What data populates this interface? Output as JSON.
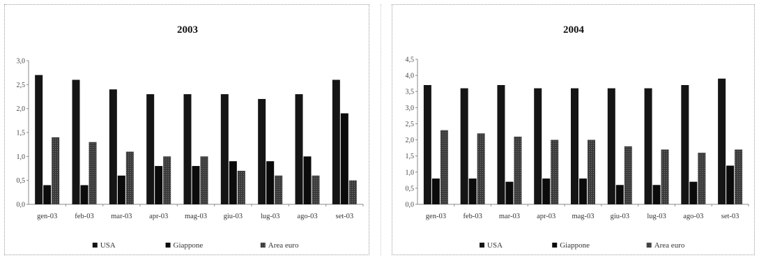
{
  "colors": {
    "USA": "#151515",
    "Giappone": "#0b0b0b",
    "Area euro": "#3c3c3c",
    "axis": "#8a8a8a",
    "grid": "#d0d0d0"
  },
  "chart_data": [
    {
      "type": "bar",
      "title": "2003",
      "categories": [
        "gen-03",
        "feb-03",
        "mar-03",
        "apr-03",
        "mag-03",
        "giu-03",
        "lug-03",
        "ago-03",
        "set-03"
      ],
      "ylim": [
        0,
        3.0
      ],
      "yticks": [
        "0,0",
        "0,5",
        "1,0",
        "1,5",
        "2,0",
        "2,5",
        "3,0"
      ],
      "series": [
        {
          "name": "USA",
          "values": [
            2.7,
            2.6,
            2.4,
            2.3,
            2.3,
            2.3,
            2.2,
            2.3,
            2.6
          ]
        },
        {
          "name": "Giappone",
          "values": [
            0.4,
            0.4,
            0.6,
            0.8,
            0.8,
            0.9,
            0.9,
            1.0,
            1.9
          ]
        },
        {
          "name": "Area euro",
          "values": [
            1.4,
            1.3,
            1.1,
            1.0,
            1.0,
            0.7,
            0.6,
            0.6,
            0.5
          ]
        }
      ],
      "legend": "bottom",
      "grid": false
    },
    {
      "type": "bar",
      "title": "2004",
      "categories": [
        "gen-03",
        "feb-03",
        "mar-03",
        "apr-03",
        "mag-03",
        "giu-03",
        "lug-03",
        "ago-03",
        "set-03"
      ],
      "ylim": [
        0,
        4.5
      ],
      "yticks": [
        "0,0",
        "0,5",
        "1,0",
        "1,5",
        "2,0",
        "2,5",
        "3,0",
        "3,5",
        "4,0",
        "4,5"
      ],
      "series": [
        {
          "name": "USA",
          "values": [
            3.7,
            3.6,
            3.7,
            3.6,
            3.6,
            3.6,
            3.6,
            3.7,
            3.9
          ]
        },
        {
          "name": "Giappone",
          "values": [
            0.8,
            0.8,
            0.7,
            0.8,
            0.8,
            0.6,
            0.6,
            0.7,
            1.2
          ]
        },
        {
          "name": "Area euro",
          "values": [
            2.3,
            2.2,
            2.1,
            2.0,
            2.0,
            1.8,
            1.7,
            1.6,
            1.7
          ]
        }
      ],
      "legend": "bottom",
      "grid": false
    }
  ]
}
